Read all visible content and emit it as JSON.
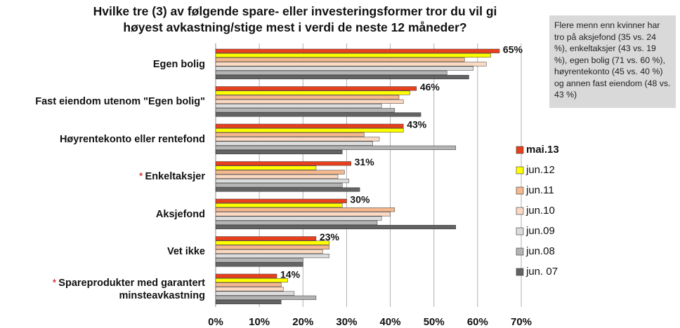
{
  "chart_data": {
    "type": "hbar",
    "title": [
      "Hvilke tre (3) av følgende spare- eller investeringsformer tror du vil gi",
      "høyest avkastning/stige mest i verdi de neste 12 måneder?"
    ],
    "note": "Flere menn enn kvinner har tro på aksjefond (35 vs. 24 %), enkeltaksjer (43 vs. 19 %), egen bolig (71 vs. 60 %), høyrentekonto (45 vs. 40 %) og annen fast eiendom (48 vs. 43 %)",
    "categories": [
      "Egen bolig",
      "Fast eiendom utenom \"Egen bolig\"",
      "Høyrentekonto eller rentefond",
      "Enkeltaksjer",
      "Aksjefond",
      "Vet ikke",
      "Spareprodukter med garantert minsteavkastning"
    ],
    "category_markers": [
      null,
      null,
      null,
      "*",
      null,
      null,
      "*"
    ],
    "series": [
      {
        "name": "mai.13",
        "color": "#e8401c",
        "values": [
          65,
          46,
          43,
          31,
          30,
          23,
          14
        ],
        "value_labels": [
          "65%",
          "46%",
          "43%",
          "31%",
          "30%",
          "23%",
          "14%"
        ]
      },
      {
        "name": "jun.12",
        "color": "#ffff00",
        "values": [
          63,
          44.5,
          43,
          23,
          29,
          26,
          16.5
        ]
      },
      {
        "name": "jun.11",
        "color": "#f5b88f",
        "values": [
          57,
          42,
          34,
          29.5,
          41,
          26,
          15
        ]
      },
      {
        "name": "jun.10",
        "color": "#fbd9c2",
        "values": [
          62,
          43,
          37.5,
          28,
          40,
          24.5,
          15.5
        ]
      },
      {
        "name": "jun.09",
        "color": "#dcdcdc",
        "values": [
          59,
          38,
          36,
          30.5,
          38,
          26,
          18
        ]
      },
      {
        "name": "jun.08",
        "color": "#b4b4b4",
        "values": [
          53,
          41,
          55,
          29,
          37,
          20,
          23
        ]
      },
      {
        "name": "jun. 07",
        "color": "#636363",
        "values": [
          58,
          47,
          29,
          33,
          55,
          20,
          15
        ]
      }
    ],
    "xlim": [
      0,
      70
    ],
    "xticks": [
      {
        "value": 0,
        "label": "0%"
      },
      {
        "value": 10,
        "label": "10%"
      },
      {
        "value": 20,
        "label": "20%"
      },
      {
        "value": 30,
        "label": "30%"
      },
      {
        "value": 40,
        "label": "40%"
      },
      {
        "value": 50,
        "label": "50%"
      },
      {
        "value": 60,
        "label": "60%"
      },
      {
        "value": 70,
        "label": "70%"
      }
    ],
    "grid": true,
    "legend": "right"
  }
}
